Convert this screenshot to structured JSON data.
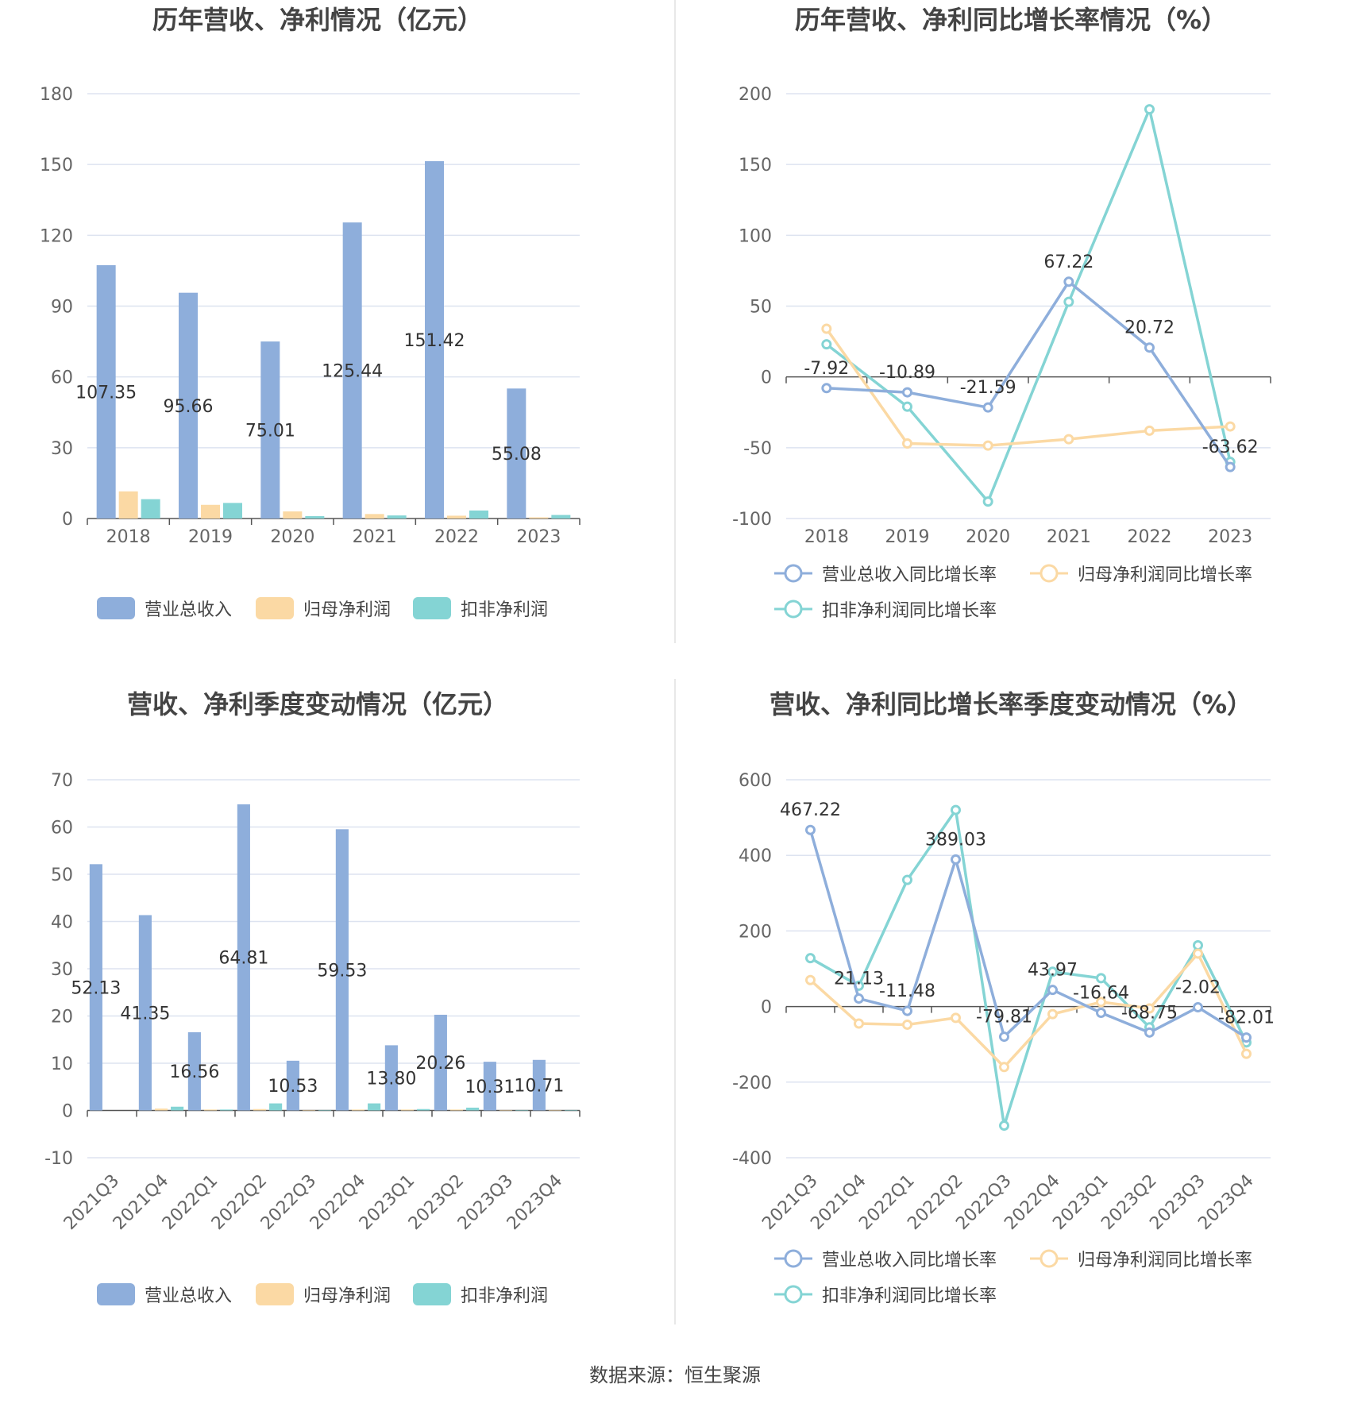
{
  "source": "数据来源：恒生聚源",
  "chart_data": [
    {
      "type": "bar",
      "title": "历年营收、净利情况（亿元）",
      "categories": [
        "2018",
        "2019",
        "2020",
        "2021",
        "2022",
        "2023"
      ],
      "ylim": [
        0,
        180
      ],
      "yticks": [
        0,
        30,
        60,
        90,
        120,
        150,
        180
      ],
      "grid": true,
      "legend_position": "bottom",
      "series": [
        {
          "name": "营业总收入",
          "color": "#8eaedb",
          "values": [
            107.35,
            95.66,
            75.01,
            125.44,
            151.42,
            55.08
          ],
          "labels": [
            "107.35",
            "95.66",
            "75.01",
            "125.44",
            "151.42",
            "55.08"
          ]
        },
        {
          "name": "归母净利润",
          "color": "#fbd9a4",
          "values": [
            11.5,
            5.8,
            3.0,
            1.9,
            1.2,
            0.5
          ]
        },
        {
          "name": "扣非净利润",
          "color": "#84d4d4",
          "values": [
            8.2,
            6.6,
            1.0,
            1.3,
            3.4,
            1.5
          ]
        }
      ]
    },
    {
      "type": "line",
      "title": "历年营收、净利同比增长率情况（%）",
      "categories": [
        "2018",
        "2019",
        "2020",
        "2021",
        "2022",
        "2023"
      ],
      "ylim": [
        -100,
        200
      ],
      "yticks": [
        -100,
        -50,
        0,
        50,
        100,
        150,
        200
      ],
      "grid": true,
      "legend_position": "bottom",
      "series": [
        {
          "name": "营业总收入同比增长率",
          "color": "#8eaedb",
          "values": [
            -7.92,
            -10.89,
            -21.59,
            67.22,
            20.72,
            -63.62
          ],
          "labels": [
            "-7.92",
            "-10.89",
            "-21.59",
            "67.22",
            "20.72",
            "-63.62"
          ]
        },
        {
          "name": "归母净利润同比增长率",
          "color": "#fbd9a4",
          "values": [
            34,
            -47,
            -48.5,
            -44,
            -38,
            -35
          ]
        },
        {
          "name": "扣非净利润同比增长率",
          "color": "#84d4d4",
          "values": [
            23,
            -21,
            -88,
            53,
            189,
            -60
          ]
        }
      ]
    },
    {
      "type": "bar",
      "title": "营收、净利季度变动情况（亿元）",
      "categories": [
        "2021Q3",
        "2021Q4",
        "2022Q1",
        "2022Q2",
        "2022Q3",
        "2022Q4",
        "2023Q1",
        "2023Q2",
        "2023Q3",
        "2023Q4"
      ],
      "ylim": [
        -10,
        70
      ],
      "yticks": [
        -10,
        0,
        10,
        20,
        30,
        40,
        50,
        60,
        70
      ],
      "grid": true,
      "legend_position": "bottom",
      "series": [
        {
          "name": "营业总收入",
          "color": "#8eaedb",
          "values": [
            52.13,
            41.35,
            16.56,
            64.81,
            10.53,
            59.53,
            13.8,
            20.26,
            10.31,
            10.71
          ],
          "labels": [
            "52.13",
            "41.35",
            "16.56",
            "64.81",
            "10.53",
            "59.53",
            "13.80",
            "20.26",
            "10.31",
            "10.71"
          ]
        },
        {
          "name": "归母净利润",
          "color": "#fbd9a4",
          "values": [
            0,
            0.4,
            0.2,
            0.3,
            0.1,
            0.2,
            0.2,
            0.2,
            0.1,
            0.1
          ]
        },
        {
          "name": "扣非净利润",
          "color": "#84d4d4",
          "values": [
            0,
            0.8,
            0.2,
            1.5,
            0.1,
            1.5,
            0.3,
            0.6,
            0.1,
            0.1
          ]
        }
      ]
    },
    {
      "type": "line",
      "title": "营收、净利同比增长率季度变动情况（%）",
      "categories": [
        "2021Q3",
        "2021Q4",
        "2022Q1",
        "2022Q2",
        "2022Q3",
        "2022Q4",
        "2023Q1",
        "2023Q2",
        "2023Q3",
        "2023Q4"
      ],
      "ylim": [
        -400,
        600
      ],
      "yticks": [
        -400,
        -200,
        0,
        200,
        400,
        600
      ],
      "grid": true,
      "legend_position": "bottom",
      "series": [
        {
          "name": "营业总收入同比增长率",
          "color": "#8eaedb",
          "values": [
            467.22,
            21.13,
            -11.48,
            389.03,
            -79.81,
            43.97,
            -16.64,
            -68.75,
            -2.02,
            -82.01
          ],
          "labels": [
            "467.22",
            "21.13",
            "-11.48",
            "389.03",
            "-79.81",
            "43.97",
            "-16.64",
            "-68.75",
            "-2.02",
            "-82.01"
          ]
        },
        {
          "name": "归母净利润同比增长率",
          "color": "#fbd9a4",
          "values": [
            70,
            -45,
            -48,
            -30,
            -160,
            -20,
            12,
            -5,
            140,
            -125
          ]
        },
        {
          "name": "扣非净利润同比增长率",
          "color": "#84d4d4",
          "values": [
            128,
            55,
            335,
            520,
            -315,
            92,
            75,
            -55,
            162,
            -95
          ]
        }
      ]
    }
  ]
}
